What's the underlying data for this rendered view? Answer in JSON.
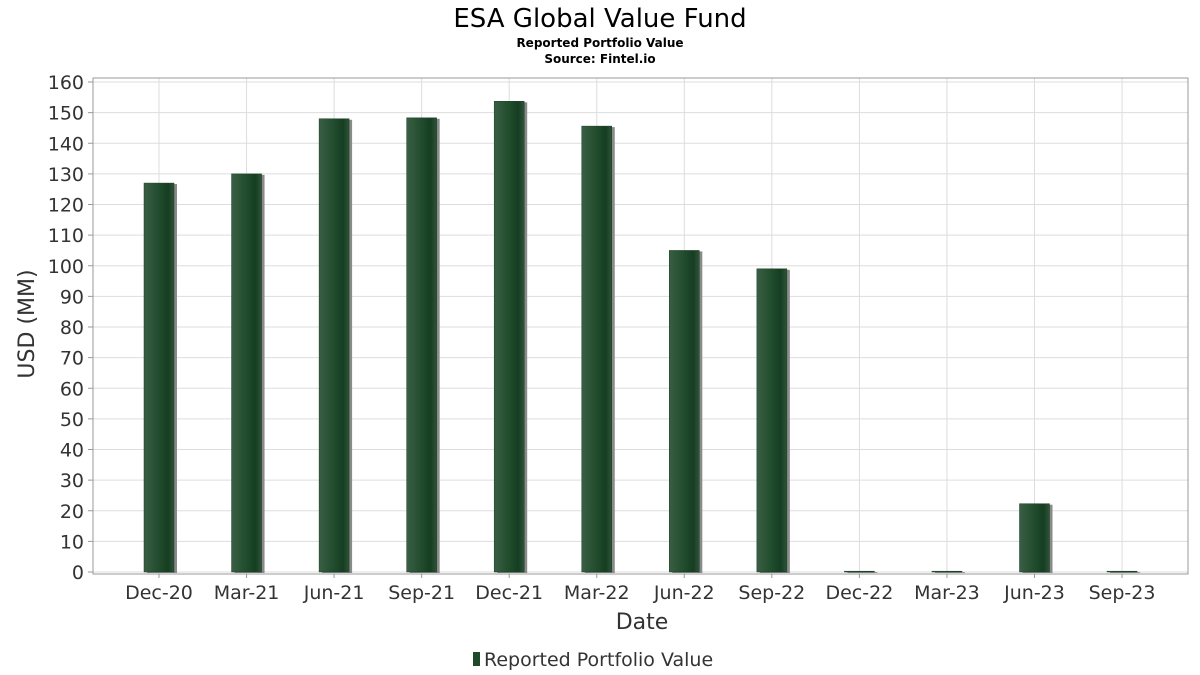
{
  "chart_data": {
    "type": "bar",
    "title": "ESA Global Value Fund",
    "subtitle": "Reported Portfolio Value",
    "source": "Source: Fintel.io",
    "xlabel": "Date",
    "ylabel": "USD (MM)",
    "ylim": [
      0,
      160
    ],
    "yticks": [
      0,
      10,
      20,
      30,
      40,
      50,
      60,
      70,
      80,
      90,
      100,
      110,
      120,
      130,
      140,
      150,
      160
    ],
    "grid": true,
    "legend_position": "bottom-center",
    "categories": [
      "Dec-20",
      "Mar-21",
      "Jun-21",
      "Sep-21",
      "Dec-21",
      "Mar-22",
      "Jun-22",
      "Sep-22",
      "Dec-22",
      "Mar-23",
      "Jun-23",
      "Sep-23"
    ],
    "series": [
      {
        "name": "Reported Portfolio Value",
        "color": "#1e4a2a",
        "values": [
          127,
          130,
          148,
          148.3,
          153.7,
          145.6,
          105,
          99,
          0,
          0,
          22.3,
          0
        ]
      }
    ]
  }
}
